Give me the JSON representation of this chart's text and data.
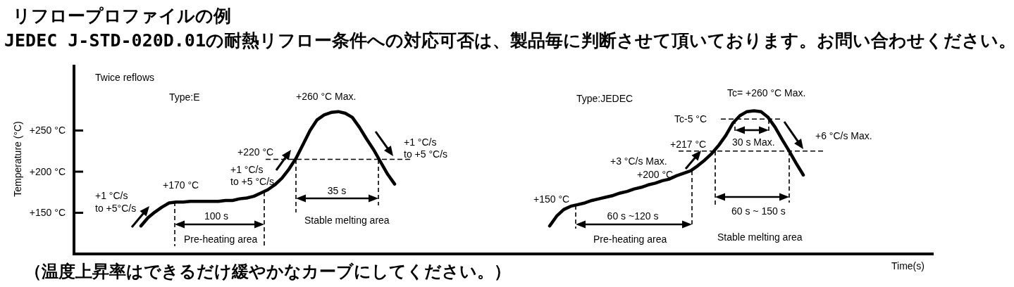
{
  "chart_data": {
    "type": "line",
    "title": "リフロープロファイルの例",
    "subtitle": "JEDEC J-STD-020D.01の耐熱リフロー条件への対応可否は、製品毎に判断させて頂いております。お問い合わせください。",
    "xlabel": "Time(s)",
    "ylabel": "Temperature (°C)",
    "categories": [
      null,
      null,
      null,
      null,
      null,
      null,
      null,
      null,
      null,
      null,
      null,
      null,
      null,
      null,
      null,
      null,
      null,
      null,
      null,
      null,
      null,
      null,
      null,
      null,
      null,
      null,
      null,
      null,
      null,
      null,
      null,
      null,
      null,
      null,
      null,
      null,
      null,
      null,
      null,
      null,
      null,
      null,
      null,
      null,
      null,
      null,
      null,
      null,
      null,
      null,
      null,
      null,
      null,
      null,
      null,
      null,
      null,
      null,
      null,
      null,
      null,
      null,
      null,
      null,
      null,
      null,
      null,
      null,
      null,
      null,
      null,
      null,
      null,
      null,
      null,
      null,
      null,
      null,
      null,
      null,
      null,
      null,
      null,
      null,
      null,
      null,
      null,
      null,
      null,
      null,
      null,
      null,
      null,
      null,
      null,
      null,
      null,
      null,
      null,
      null,
      null,
      null,
      null,
      null,
      null,
      null,
      null,
      null,
      null,
      null,
      null,
      null,
      null,
      null,
      null,
      null,
      null,
      null,
      null,
      null,
      null,
      null
    ],
    "series": [
      {
        "color": "#000000",
        "values": [
          null,
          null,
          null,
          null,
          null,
          null,
          null,
          null,
          null,
          134,
          144,
          151,
          157,
          162,
          163,
          163,
          164,
          164,
          164,
          164,
          164,
          165,
          165,
          167,
          168,
          170,
          174,
          178,
          184,
          192,
          203,
          216,
          233,
          250,
          263,
          269,
          272,
          273,
          271,
          266,
          254,
          240,
          227,
          212,
          197,
          185,
          null,
          null,
          null,
          null,
          null,
          null,
          null,
          null,
          null,
          null,
          null,
          null,
          null,
          null,
          null,
          null,
          null,
          null,
          null,
          null,
          null,
          null,
          null,
          null,
          null,
          null,
          null,
          null,
          null,
          null,
          null,
          null,
          null,
          null,
          null,
          null,
          null,
          null,
          null,
          null,
          null,
          null,
          null,
          null,
          null,
          null,
          null,
          null,
          null,
          null,
          null,
          null,
          null,
          null,
          null,
          null,
          null,
          null,
          null,
          null,
          null,
          null,
          null,
          null,
          null,
          null,
          null,
          null,
          null,
          null,
          null,
          null,
          null,
          null,
          null,
          null
        ]
      },
      {
        "color": "#000000",
        "values": [
          null,
          null,
          null,
          null,
          null,
          null,
          null,
          null,
          null,
          null,
          null,
          null,
          null,
          null,
          null,
          null,
          null,
          null,
          null,
          null,
          null,
          null,
          null,
          null,
          null,
          null,
          null,
          null,
          null,
          null,
          null,
          null,
          null,
          null,
          null,
          null,
          null,
          null,
          null,
          null,
          null,
          null,
          null,
          null,
          null,
          null,
          null,
          null,
          null,
          null,
          null,
          null,
          null,
          null,
          null,
          null,
          null,
          null,
          null,
          null,
          null,
          null,
          null,
          null,
          null,
          null,
          null,
          134,
          146,
          154,
          158,
          160,
          162,
          165,
          167,
          169,
          171,
          174,
          176,
          179,
          181,
          184,
          186,
          189,
          191,
          195,
          198,
          201,
          207,
          214,
          222,
          232,
          244,
          259,
          268,
          273,
          274,
          273,
          266,
          254,
          239,
          225,
          210,
          196,
          null,
          null,
          null,
          null,
          null,
          null,
          null,
          null,
          null,
          null,
          null,
          null,
          null,
          null,
          null,
          null,
          null,
          null
        ]
      }
    ],
    "ylim": [
      100,
      330
    ],
    "yticks": [
      {
        "value": 150,
        "label": "+150 °C"
      },
      {
        "value": 200,
        "label": "+200 °C"
      },
      {
        "value": 250,
        "label": "+250 °C"
      }
    ],
    "tick_labels": "y",
    "ref_lines": [
      {
        "axis": "y",
        "value": 215,
        "label": "+220 °C",
        "line_style": "dashed"
      },
      {
        "axis": "y",
        "value": 264,
        "label": "Tc-5 °C",
        "line_style": "dashed"
      },
      {
        "axis": "y",
        "value": 225,
        "label": "+217 °C",
        "line_style": "dashed"
      }
    ],
    "annotations": [
      "Twice reflows",
      "+1 °C/s\nto +5°C/s",
      "+170 °C",
      "100 s",
      "Pre-heating area",
      "+1 °C/s\nto +5 °C/s",
      "+260 °C Max.",
      "35 s",
      "Stable melting area",
      "+1 °C/s\nto +5 °C/s",
      "+150 °C",
      "+3 °C/s Max.",
      "+200 °C",
      "60 s ~120 s",
      "Pre-heating area",
      "Tc= +260 °C Max.",
      "30 s Max.",
      "+6 °C/s Max.",
      "60 s ~ 150 s",
      "Stable melting area",
      "（温度上昇率はできるだけ緩やかなカーブにしてください。）",
      "Type:E",
      "Type:JEDEC"
    ]
  }
}
